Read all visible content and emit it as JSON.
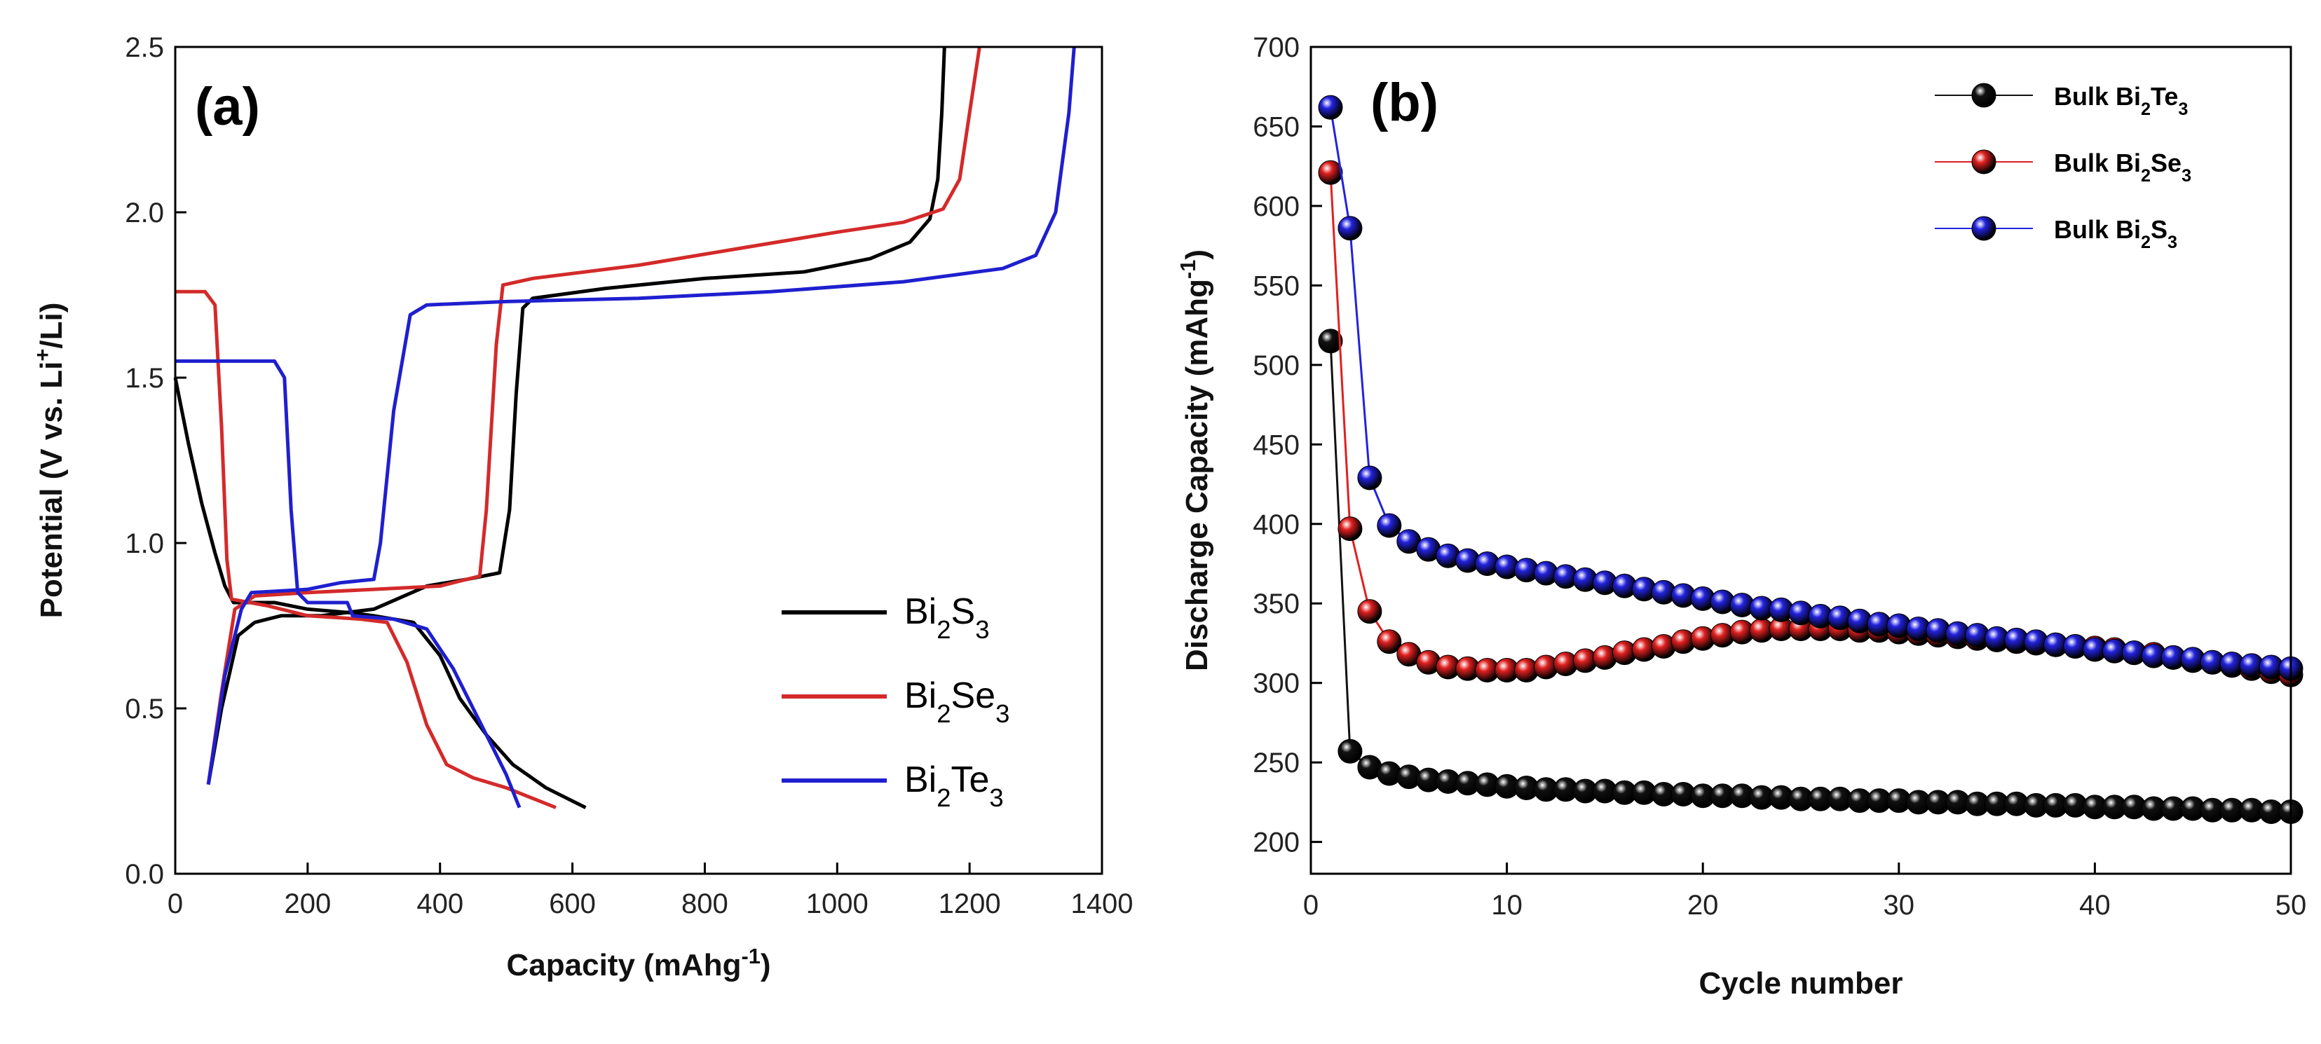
{
  "chart_data": [
    {
      "type": "line",
      "panel_label": "(a)",
      "xlabel": {
        "main": "Capacity (mAhg",
        "sup": "-1",
        "end": ")"
      },
      "ylabel": {
        "main": "Potential (V vs. Li",
        "sup": "+",
        "end": "/Li)"
      },
      "xlim": [
        0,
        1400
      ],
      "ylim": [
        0.0,
        2.5
      ],
      "xticks": [
        0,
        200,
        400,
        600,
        800,
        1000,
        1200,
        1400
      ],
      "yticks": [
        0.0,
        0.5,
        1.0,
        1.5,
        2.0,
        2.5
      ],
      "legend_position": "lower-right",
      "series": [
        {
          "name": "Bi2S3",
          "legend": [
            [
              "Bi",
              ""
            ],
            [
              "2",
              "sub"
            ],
            [
              "S",
              ""
            ],
            [
              "3",
              "sub"
            ]
          ],
          "color": "#000000",
          "discharge": [
            [
              0,
              1.5
            ],
            [
              20,
              1.3
            ],
            [
              40,
              1.12
            ],
            [
              60,
              0.97
            ],
            [
              75,
              0.87
            ],
            [
              88,
              0.82
            ],
            [
              150,
              0.82
            ],
            [
              200,
              0.8
            ],
            [
              260,
              0.79
            ],
            [
              300,
              0.78
            ],
            [
              360,
              0.76
            ],
            [
              400,
              0.66
            ],
            [
              430,
              0.53
            ],
            [
              470,
              0.42
            ],
            [
              510,
              0.33
            ],
            [
              560,
              0.26
            ],
            [
              610,
              0.21
            ],
            [
              620,
              0.2
            ]
          ],
          "charge": [
            [
              50,
              0.27
            ],
            [
              70,
              0.5
            ],
            [
              95,
              0.72
            ],
            [
              120,
              0.76
            ],
            [
              160,
              0.78
            ],
            [
              220,
              0.78
            ],
            [
              300,
              0.8
            ],
            [
              380,
              0.87
            ],
            [
              440,
              0.89
            ],
            [
              490,
              0.91
            ],
            [
              505,
              1.1
            ],
            [
              515,
              1.45
            ],
            [
              525,
              1.71
            ],
            [
              540,
              1.74
            ],
            [
              650,
              1.77
            ],
            [
              800,
              1.8
            ],
            [
              950,
              1.82
            ],
            [
              1050,
              1.86
            ],
            [
              1110,
              1.91
            ],
            [
              1140,
              1.98
            ],
            [
              1152,
              2.1
            ],
            [
              1158,
              2.3
            ],
            [
              1162,
              2.5
            ]
          ]
        },
        {
          "name": "Bi2Se3",
          "legend": [
            [
              "Bi",
              ""
            ],
            [
              "2",
              "sub"
            ],
            [
              "Se",
              ""
            ],
            [
              "3",
              "sub"
            ]
          ],
          "color": "#d42a2a",
          "discharge": [
            [
              0,
              1.76
            ],
            [
              45,
              1.76
            ],
            [
              60,
              1.72
            ],
            [
              70,
              1.35
            ],
            [
              78,
              0.95
            ],
            [
              85,
              0.83
            ],
            [
              140,
              0.81
            ],
            [
              200,
              0.78
            ],
            [
              280,
              0.77
            ],
            [
              320,
              0.76
            ],
            [
              350,
              0.64
            ],
            [
              380,
              0.45
            ],
            [
              410,
              0.33
            ],
            [
              450,
              0.29
            ],
            [
              500,
              0.26
            ],
            [
              550,
              0.22
            ],
            [
              575,
              0.2
            ]
          ],
          "charge": [
            [
              50,
              0.27
            ],
            [
              70,
              0.55
            ],
            [
              90,
              0.8
            ],
            [
              120,
              0.84
            ],
            [
              200,
              0.85
            ],
            [
              300,
              0.86
            ],
            [
              400,
              0.87
            ],
            [
              460,
              0.9
            ],
            [
              470,
              1.1
            ],
            [
              485,
              1.6
            ],
            [
              495,
              1.78
            ],
            [
              540,
              1.8
            ],
            [
              700,
              1.84
            ],
            [
              850,
              1.89
            ],
            [
              1000,
              1.94
            ],
            [
              1100,
              1.97
            ],
            [
              1160,
              2.01
            ],
            [
              1185,
              2.1
            ],
            [
              1200,
              2.3
            ],
            [
              1215,
              2.5
            ]
          ]
        },
        {
          "name": "Bi2Te3",
          "legend": [
            [
              "Bi",
              ""
            ],
            [
              "2",
              "sub"
            ],
            [
              "Te",
              ""
            ],
            [
              "3",
              "sub"
            ]
          ],
          "color": "#1f1fcf",
          "discharge": [
            [
              0,
              1.55
            ],
            [
              150,
              1.55
            ],
            [
              165,
              1.5
            ],
            [
              175,
              1.1
            ],
            [
              185,
              0.85
            ],
            [
              200,
              0.82
            ],
            [
              260,
              0.82
            ],
            [
              268,
              0.78
            ],
            [
              330,
              0.77
            ],
            [
              380,
              0.74
            ],
            [
              420,
              0.62
            ],
            [
              450,
              0.5
            ],
            [
              480,
              0.38
            ],
            [
              500,
              0.3
            ],
            [
              520,
              0.2
            ]
          ],
          "charge": [
            [
              50,
              0.27
            ],
            [
              75,
              0.6
            ],
            [
              100,
              0.8
            ],
            [
              115,
              0.85
            ],
            [
              200,
              0.86
            ],
            [
              250,
              0.88
            ],
            [
              300,
              0.89
            ],
            [
              310,
              1.0
            ],
            [
              330,
              1.4
            ],
            [
              355,
              1.69
            ],
            [
              380,
              1.72
            ],
            [
              500,
              1.73
            ],
            [
              700,
              1.74
            ],
            [
              900,
              1.76
            ],
            [
              1100,
              1.79
            ],
            [
              1250,
              1.83
            ],
            [
              1300,
              1.87
            ],
            [
              1330,
              2.0
            ],
            [
              1350,
              2.3
            ],
            [
              1358,
              2.5
            ]
          ]
        }
      ]
    },
    {
      "type": "line",
      "panel_label": "(b)",
      "xlabel": {
        "main": "Cycle number",
        "sup": "",
        "end": ""
      },
      "ylabel": {
        "main": "Discharge Capacity (mAhg",
        "sup": "-1",
        "end": ")"
      },
      "xlim": [
        0,
        50
      ],
      "ylim": [
        180,
        700
      ],
      "xticks": [
        0,
        10,
        20,
        30,
        40,
        50
      ],
      "yticks": [
        200,
        250,
        300,
        350,
        400,
        450,
        500,
        550,
        600,
        650,
        700
      ],
      "legend_position": "top-right",
      "x": [
        1,
        2,
        3,
        4,
        5,
        6,
        7,
        8,
        9,
        10,
        11,
        12,
        13,
        14,
        15,
        16,
        17,
        18,
        19,
        20,
        21,
        22,
        23,
        24,
        25,
        26,
        27,
        28,
        29,
        30,
        31,
        32,
        33,
        34,
        35,
        36,
        37,
        38,
        39,
        40,
        41,
        42,
        43,
        44,
        45,
        46,
        47,
        48,
        49,
        50
      ],
      "series": [
        {
          "name": "Bulk Bi2Te3",
          "legend": [
            [
              "Bulk Bi",
              ""
            ],
            [
              "2",
              "sub"
            ],
            [
              "Te",
              ""
            ],
            [
              "3",
              "sub"
            ]
          ],
          "color": "#111111",
          "values": [
            515,
            257,
            247,
            243,
            241,
            239,
            238,
            237,
            236,
            235,
            234,
            233,
            233,
            232,
            232,
            231,
            231,
            230,
            230,
            229,
            229,
            229,
            228,
            228,
            227,
            227,
            227,
            226,
            226,
            226,
            225,
            225,
            225,
            224,
            224,
            224,
            223,
            223,
            223,
            222,
            222,
            222,
            221,
            221,
            221,
            220,
            220,
            220,
            219,
            219
          ]
        },
        {
          "name": "Bulk Bi2Se3",
          "legend": [
            [
              "Bulk Bi",
              ""
            ],
            [
              "2",
              "sub"
            ],
            [
              "Se",
              ""
            ],
            [
              "3",
              "sub"
            ]
          ],
          "color": "#e02020",
          "values": [
            621,
            397,
            345,
            326,
            318,
            313,
            310,
            309,
            308,
            308,
            308,
            310,
            312,
            314,
            316,
            319,
            321,
            323,
            326,
            328,
            330,
            332,
            333,
            334,
            334,
            334,
            334,
            333,
            333,
            332,
            331,
            330,
            329,
            328,
            327,
            326,
            325,
            324,
            323,
            322,
            321,
            319,
            318,
            316,
            314,
            313,
            311,
            309,
            307,
            305
          ]
        },
        {
          "name": "Bulk Bi2S3",
          "legend": [
            [
              "Bulk Bi",
              ""
            ],
            [
              "2",
              "sub"
            ],
            [
              "S",
              ""
            ],
            [
              "3",
              "sub"
            ]
          ],
          "color": "#2222dd",
          "values": [
            662,
            586,
            429,
            399,
            389,
            384,
            380,
            377,
            375,
            373,
            371,
            369,
            367,
            365,
            363,
            361,
            359,
            357,
            355,
            353,
            351,
            349,
            347,
            346,
            344,
            342,
            341,
            339,
            337,
            336,
            334,
            333,
            331,
            330,
            328,
            327,
            326,
            324,
            323,
            321,
            320,
            319,
            317,
            316,
            315,
            313,
            312,
            311,
            310,
            309
          ]
        }
      ]
    }
  ]
}
